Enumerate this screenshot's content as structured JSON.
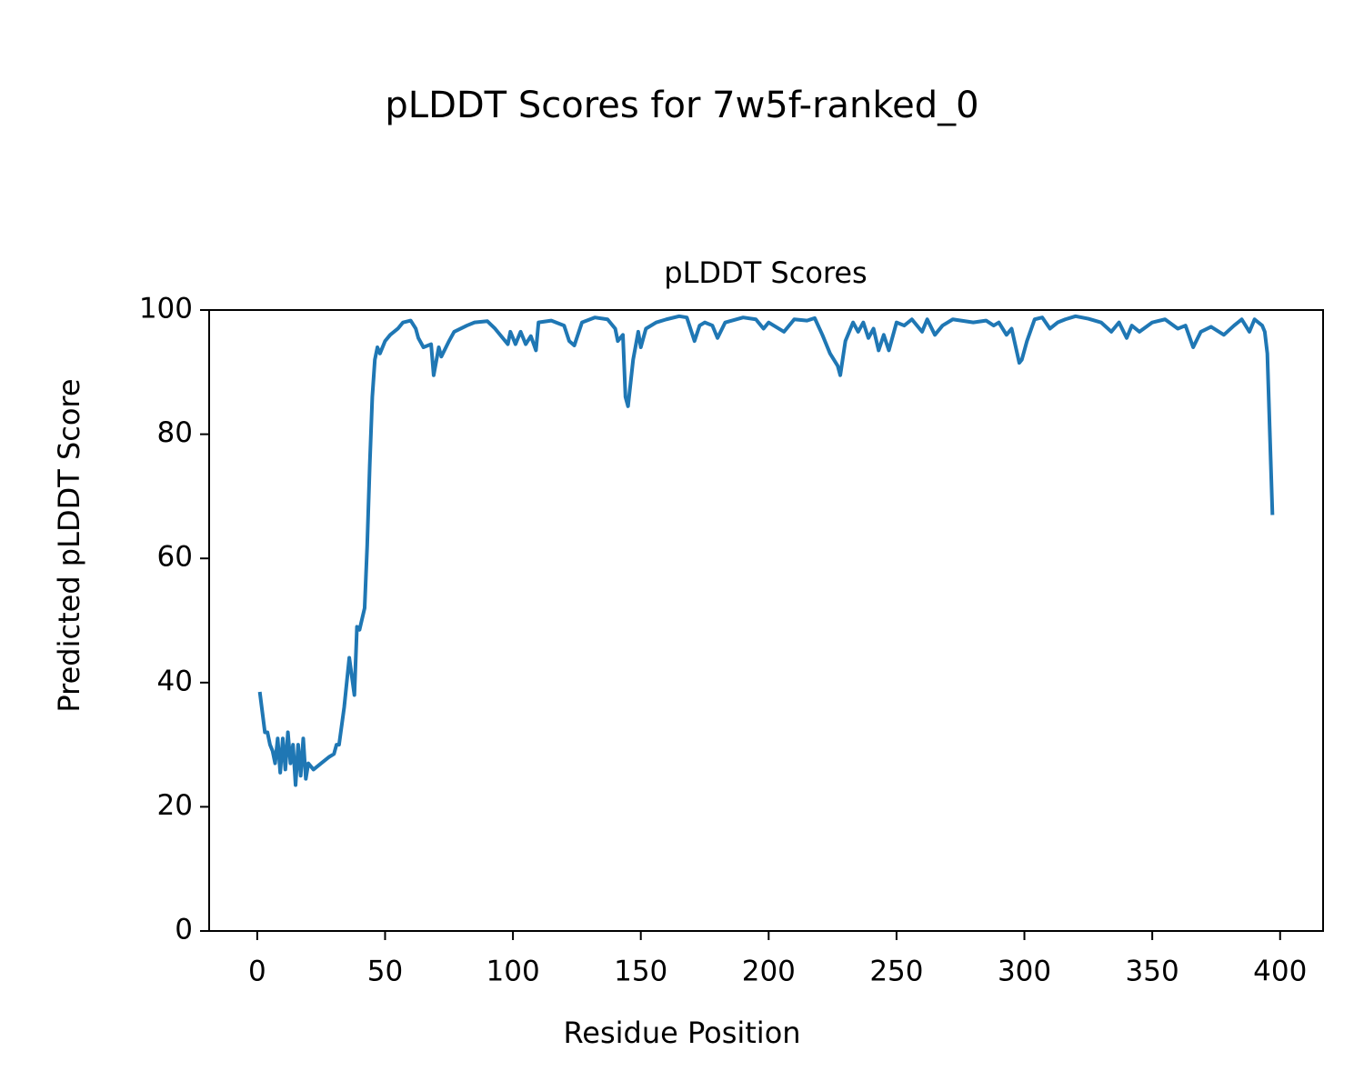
{
  "chart_data": {
    "type": "line",
    "suptitle": "pLDDT Scores for 7w5f-ranked_0",
    "title": "pLDDT Scores",
    "x_label": "Residue Position",
    "y_label": "Predicted pLDDT Score",
    "xlim": [
      -18.8,
      416.8
    ],
    "ylim": [
      0,
      100
    ],
    "xticks": [
      0,
      50,
      100,
      150,
      200,
      250,
      300,
      350,
      400
    ],
    "yticks": [
      0,
      20,
      40,
      60,
      80,
      100
    ],
    "grid": false,
    "series": [
      {
        "name": "pLDDT",
        "color": "#1f77b4",
        "x": [
          1,
          3,
          4,
          5,
          6,
          7,
          8,
          9,
          10,
          11,
          12,
          13,
          14,
          15,
          16,
          17,
          18,
          19,
          20,
          22,
          25,
          28,
          30,
          31,
          32,
          34,
          36,
          38,
          39,
          40,
          42,
          43,
          44,
          45,
          46,
          47,
          48,
          50,
          52,
          55,
          57,
          60,
          62,
          63,
          65,
          68,
          69,
          71,
          72,
          75,
          77,
          82,
          85,
          90,
          93,
          96,
          98,
          99,
          101,
          103,
          105,
          107,
          109,
          110,
          115,
          120,
          122,
          124,
          127,
          132,
          137,
          140,
          141,
          143,
          144,
          145,
          147,
          149,
          150,
          152,
          156,
          160,
          165,
          168,
          171,
          173,
          175,
          178,
          180,
          183,
          190,
          195,
          198,
          200,
          206,
          210,
          215,
          218,
          221,
          224,
          227,
          228,
          230,
          233,
          235,
          237,
          239,
          241,
          243,
          245,
          247,
          250,
          253,
          256,
          260,
          262,
          265,
          268,
          272,
          280,
          285,
          288,
          290,
          293,
          295,
          298,
          299,
          301,
          304,
          307,
          310,
          313,
          316,
          320,
          325,
          330,
          334,
          337,
          340,
          342,
          345,
          350,
          355,
          360,
          363,
          366,
          369,
          373,
          378,
          382,
          385,
          388,
          390,
          393,
          394,
          395,
          397
        ],
        "values": [
          38.5,
          32,
          32,
          30,
          29,
          27,
          31,
          25.5,
          31,
          26,
          32,
          27,
          30,
          23.5,
          30,
          25,
          31,
          24.5,
          27,
          26,
          27,
          28,
          28.5,
          30,
          30,
          36,
          44,
          38,
          49,
          48.5,
          52,
          62,
          75,
          86,
          92,
          94,
          93,
          95,
          96,
          97,
          98,
          98.3,
          97,
          95.5,
          94,
          94.5,
          89.5,
          94,
          92.5,
          95,
          96.5,
          97.5,
          98,
          98.2,
          97,
          95.5,
          94.5,
          96.5,
          94.5,
          96.5,
          94.5,
          95.8,
          93.5,
          98,
          98.3,
          97.5,
          95,
          94.3,
          98,
          98.8,
          98.5,
          97,
          95,
          96,
          86,
          84.5,
          92,
          96.5,
          94,
          97,
          98,
          98.5,
          99,
          98.8,
          95,
          97.5,
          98,
          97.5,
          95.5,
          98,
          98.8,
          98.5,
          97,
          98,
          96.5,
          98.5,
          98.3,
          98.7,
          96,
          93,
          91,
          89.5,
          95,
          98,
          96.5,
          98,
          95.5,
          97,
          93.5,
          96,
          93.5,
          98,
          97.5,
          98.5,
          96.5,
          98.5,
          96,
          97.5,
          98.5,
          98,
          98.3,
          97.5,
          98,
          96,
          97,
          91.5,
          92,
          95,
          98.5,
          98.8,
          97,
          98,
          98.5,
          99,
          98.6,
          98,
          96.5,
          98,
          95.5,
          97.5,
          96.5,
          98,
          98.5,
          97,
          97.5,
          94,
          96.5,
          97.3,
          96,
          97.5,
          98.5,
          96.5,
          98.5,
          97.5,
          96.5,
          93,
          67
        ]
      }
    ]
  }
}
